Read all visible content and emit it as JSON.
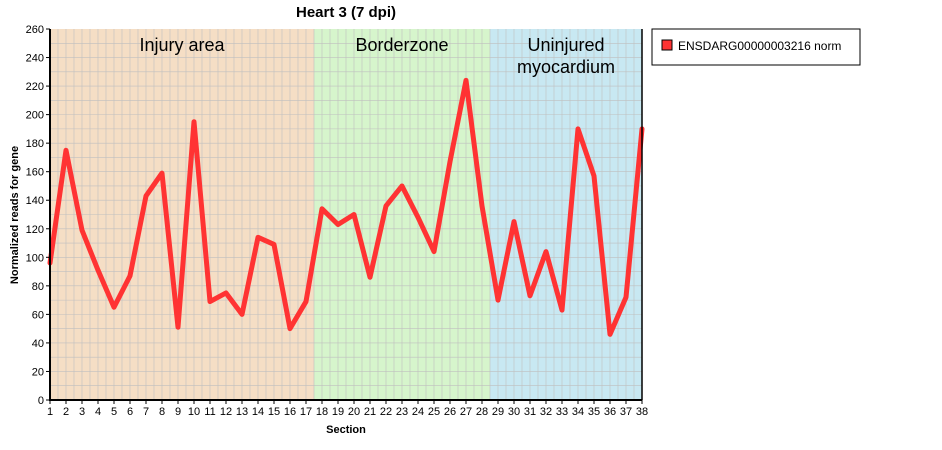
{
  "chart_data": {
    "type": "line",
    "title": "Heart 3 (7 dpi)",
    "xlabel": "Section",
    "ylabel": "Normalized reads for gene",
    "ylim": [
      0,
      260
    ],
    "yticks": [
      0,
      20,
      40,
      60,
      80,
      100,
      120,
      140,
      160,
      180,
      200,
      220,
      240,
      260
    ],
    "x": [
      1,
      2,
      3,
      4,
      5,
      6,
      7,
      8,
      9,
      10,
      11,
      12,
      13,
      14,
      15,
      16,
      17,
      18,
      19,
      20,
      21,
      22,
      23,
      24,
      25,
      26,
      27,
      28,
      29,
      30,
      31,
      32,
      33,
      34,
      35,
      36,
      37,
      38
    ],
    "series": [
      {
        "name": "ENSDARG00000003216 norm",
        "color": "#ff3333",
        "values": [
          96,
          175,
          119,
          91,
          65,
          87,
          143,
          159,
          51,
          195,
          69,
          75,
          60,
          114,
          109,
          50,
          69,
          134,
          123,
          130,
          86,
          136,
          150,
          128,
          104,
          167,
          224,
          136,
          70,
          125,
          73,
          104,
          63,
          190,
          157,
          46,
          72,
          190
        ]
      }
    ],
    "regions": [
      {
        "lines": [
          "Injury area"
        ],
        "from": 1,
        "to": 17.5,
        "color": "#f5dec5"
      },
      {
        "lines": [
          "Borderzone"
        ],
        "from": 17.5,
        "to": 28.5,
        "color": "#d6f5cc"
      },
      {
        "lines": [
          "Uninjured",
          "myocardium"
        ],
        "from": 28.5,
        "to": 38,
        "color": "#c8e8f2"
      }
    ],
    "grid": true,
    "legend": "top-right"
  }
}
